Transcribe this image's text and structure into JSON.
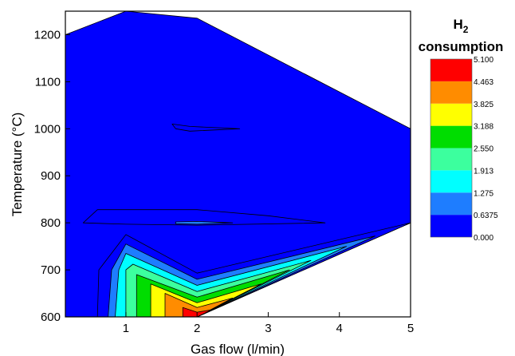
{
  "chart_data": {
    "type": "contour",
    "xlabel": "Gas flow (l/min)",
    "ylabel": "Temperature (°C)",
    "xlim": [
      0.15,
      5
    ],
    "ylim": [
      600,
      1250
    ],
    "x_ticks": [
      "1",
      "2",
      "3",
      "4",
      "5"
    ],
    "y_ticks": [
      "600",
      "700",
      "800",
      "900",
      "1000",
      "1100",
      "1200"
    ],
    "colorbar": {
      "title_main": "H",
      "title_sub": "2",
      "title_line2": "consumption",
      "levels": [
        "0.000",
        "0.6375",
        "1.275",
        "1.913",
        "2.550",
        "3.188",
        "3.825",
        "4.463",
        "5.100"
      ],
      "colors": [
        "#0000ff",
        "#1e7dff",
        "#00ffff",
        "#3cff9e",
        "#00dd00",
        "#ffff00",
        "#ff8c00",
        "#ff0000"
      ]
    },
    "domain": [
      [
        0.15,
        1200
      ],
      [
        1,
        1250
      ],
      [
        2,
        1235
      ],
      [
        5,
        1000
      ],
      [
        5,
        800
      ],
      [
        2,
        600
      ],
      [
        0.15,
        600
      ]
    ],
    "regions": [
      {
        "level": 0,
        "points": [
          [
            1.65,
            1010
          ],
          [
            1.9,
            1005
          ],
          [
            2.6,
            1000
          ],
          [
            1.9,
            995
          ],
          [
            1.7,
            1000
          ]
        ]
      },
      {
        "level": 0,
        "points": [
          [
            0.4,
            800
          ],
          [
            0.6,
            828
          ],
          [
            2.0,
            828
          ],
          [
            3.0,
            815
          ],
          [
            3.8,
            800
          ],
          [
            2.0,
            795
          ],
          [
            1.0,
            797
          ]
        ]
      },
      {
        "level": 1,
        "points": [
          [
            1.7,
            802
          ],
          [
            2.0,
            803
          ],
          [
            2.5,
            800
          ],
          [
            2.0,
            797
          ],
          [
            1.7,
            798
          ]
        ]
      },
      {
        "level": 0,
        "points": [
          [
            0.6,
            600
          ],
          [
            0.62,
            700
          ],
          [
            1.0,
            775
          ],
          [
            2.0,
            693
          ],
          [
            5.0,
            800
          ],
          [
            2.0,
            600
          ]
        ]
      },
      {
        "level": 1,
        "points": [
          [
            0.75,
            600
          ],
          [
            0.8,
            700
          ],
          [
            1.0,
            755
          ],
          [
            2.0,
            680
          ],
          [
            4.5,
            772
          ],
          [
            2.0,
            600
          ]
        ]
      },
      {
        "level": 2,
        "points": [
          [
            0.85,
            600
          ],
          [
            0.9,
            700
          ],
          [
            1.0,
            735
          ],
          [
            2.0,
            667
          ],
          [
            4.1,
            750
          ],
          [
            2.0,
            600
          ]
        ]
      },
      {
        "level": 3,
        "points": [
          [
            1.0,
            600
          ],
          [
            1.0,
            700
          ],
          [
            1.1,
            712
          ],
          [
            2.0,
            654
          ],
          [
            3.6,
            720
          ],
          [
            2.0,
            600
          ]
        ]
      },
      {
        "level": 4,
        "points": [
          [
            1.15,
            600
          ],
          [
            1.15,
            690
          ],
          [
            2.0,
            642
          ],
          [
            3.3,
            700
          ],
          [
            2.0,
            600
          ]
        ]
      },
      {
        "level": 5,
        "points": [
          [
            1.35,
            600
          ],
          [
            1.35,
            670
          ],
          [
            2.0,
            630
          ],
          [
            2.9,
            670
          ],
          [
            2.0,
            600
          ]
        ]
      },
      {
        "level": 6,
        "points": [
          [
            1.55,
            600
          ],
          [
            1.55,
            650
          ],
          [
            2.0,
            620
          ],
          [
            2.5,
            640
          ],
          [
            2.0,
            600
          ]
        ]
      },
      {
        "level": 7,
        "points": [
          [
            1.8,
            600
          ],
          [
            1.8,
            620
          ],
          [
            2.0,
            610
          ],
          [
            2.2,
            615
          ],
          [
            2.0,
            600
          ]
        ]
      }
    ]
  }
}
